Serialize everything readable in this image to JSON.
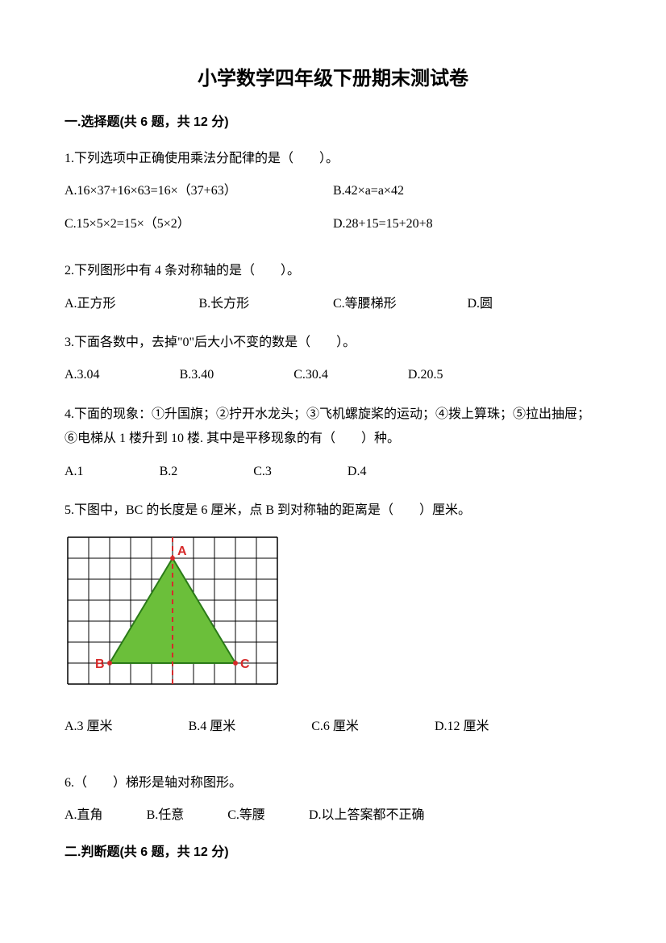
{
  "title": "小学数学四年级下册期末测试卷",
  "section1": {
    "header": "一.选择题(共 6 题，共 12 分)",
    "q1": {
      "stem": "1.下列选项中正确使用乘法分配律的是（　　）。",
      "a": "A.16×37+16×63=16×（37+63）",
      "b": "B.42×a=a×42",
      "c": "C.15×5×2=15×（5×2）",
      "d": "D.28+15=15+20+8"
    },
    "q2": {
      "stem": "2.下列图形中有 4 条对称轴的是（　　）。",
      "a": "A.正方形",
      "b": "B.长方形",
      "c": "C.等腰梯形",
      "d": "D.圆"
    },
    "q3": {
      "stem": "3.下面各数中，去掉\"0\"后大小不变的数是（　　）。",
      "a": "A.3.04",
      "b": "B.3.40",
      "c": "C.30.4",
      "d": "D.20.5"
    },
    "q4": {
      "stem": "4.下面的现象：①升国旗；②拧开水龙头；③飞机螺旋桨的运动；④拨上算珠；⑤拉出抽屉；⑥电梯从 1 楼升到 10 楼. 其中是平移现象的有（　　）种。",
      "a": "A.1",
      "b": "B.2",
      "c": "C.3",
      "d": "D.4"
    },
    "q5": {
      "stem": "5.下图中，BC 的长度是 6 厘米，点 B 到对称轴的距离是（　　）厘米。",
      "a": "A.3 厘米",
      "b": "B.4 厘米",
      "c": "C.6 厘米",
      "d": "D.12 厘米",
      "diagram": {
        "type": "triangle-on-grid",
        "grid_cols": 10,
        "grid_rows": 7,
        "grid_color": "#000000",
        "bg_color": "#ffffff",
        "triangle_fill": "#6bbf3a",
        "triangle_stroke": "#2a7a18",
        "axis_color": "#d62a2a",
        "label_color": "#d62a2a",
        "cell_size": 26,
        "apex": {
          "col": 5,
          "row": 1
        },
        "base_left": {
          "col": 2,
          "row": 6
        },
        "base_right": {
          "col": 8,
          "row": 6
        },
        "labels": {
          "A": "A",
          "B": "B",
          "C": "C"
        }
      }
    },
    "q6": {
      "stem": "6.（　　）梯形是轴对称图形。",
      "a": "A.直角",
      "b": "B.任意",
      "c": "C.等腰",
      "d": "D.以上答案都不正确"
    }
  },
  "section2": {
    "header": "二.判断题(共 6 题，共 12 分)"
  }
}
